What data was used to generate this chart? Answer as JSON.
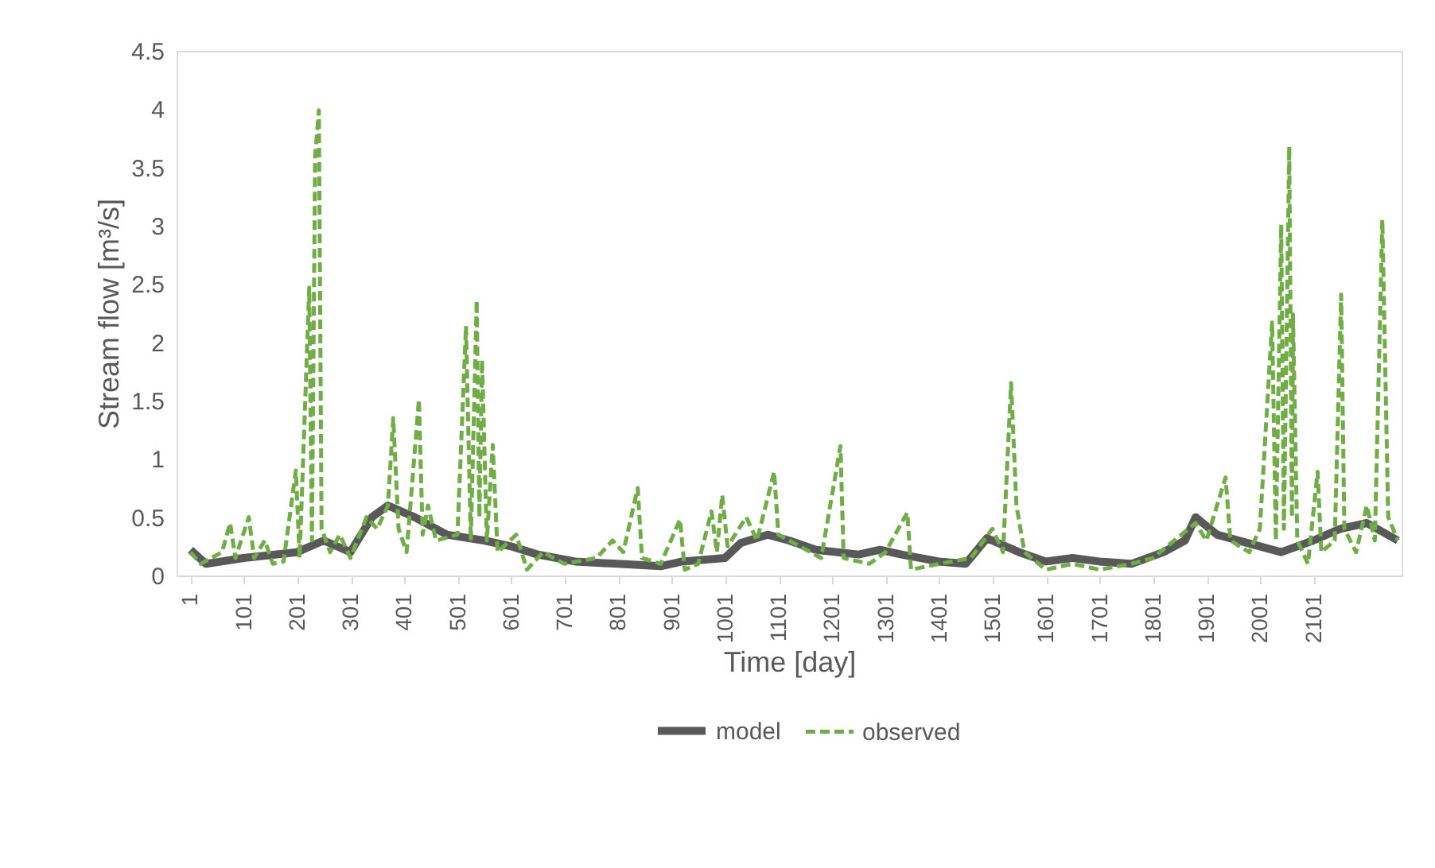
{
  "chart_data": {
    "type": "line",
    "xlabel": "Time [day]",
    "ylabel": "Stream flow [m³/s]",
    "xlim": [
      -25,
      2265
    ],
    "xticks": [
      1,
      101,
      201,
      301,
      401,
      501,
      601,
      701,
      801,
      901,
      1001,
      1101,
      1201,
      1301,
      1401,
      1501,
      1601,
      1701,
      1801,
      1901,
      2001,
      2101
    ],
    "ylim": [
      0,
      4.5
    ],
    "yticks": [
      0,
      0.5,
      1,
      1.5,
      2,
      2.5,
      3,
      3.5,
      4,
      4.5
    ],
    "grid": false,
    "legend": "bottom",
    "series": [
      {
        "name": "model",
        "color": "#595959",
        "line_style": "solid",
        "x": [
          1,
          30,
          100,
          200,
          250,
          300,
          340,
          370,
          420,
          480,
          550,
          600,
          650,
          720,
          800,
          880,
          920,
          1000,
          1030,
          1080,
          1120,
          1170,
          1250,
          1290,
          1330,
          1400,
          1450,
          1490,
          1550,
          1600,
          1650,
          1700,
          1760,
          1820,
          1860,
          1880,
          1920,
          2000,
          2040,
          2100,
          2150,
          2200,
          2258
        ],
        "values": [
          0.22,
          0.1,
          0.15,
          0.2,
          0.3,
          0.2,
          0.5,
          0.6,
          0.5,
          0.35,
          0.3,
          0.25,
          0.18,
          0.12,
          0.1,
          0.08,
          0.12,
          0.15,
          0.28,
          0.35,
          0.3,
          0.22,
          0.18,
          0.22,
          0.18,
          0.12,
          0.1,
          0.32,
          0.2,
          0.12,
          0.15,
          0.12,
          0.1,
          0.2,
          0.3,
          0.5,
          0.35,
          0.25,
          0.2,
          0.3,
          0.4,
          0.45,
          0.3
        ]
      },
      {
        "name": "observed",
        "color": "#70ad47",
        "line_style": "dashed",
        "x": [
          1,
          20,
          40,
          60,
          75,
          85,
          110,
          120,
          140,
          155,
          175,
          198,
          205,
          223,
          228,
          234,
          241,
          246,
          262,
          280,
          300,
          330,
          350,
          370,
          380,
          390,
          405,
          428,
          435,
          445,
          460,
          500,
          516,
          525,
          536,
          541,
          546,
          555,
          566,
          575,
          610,
          630,
          660,
          700,
          760,
          790,
          810,
          837,
          845,
          880,
          916,
          925,
          950,
          975,
          985,
          995,
          1005,
          1040,
          1060,
          1092,
          1100,
          1140,
          1180,
          1216,
          1222,
          1270,
          1300,
          1341,
          1348,
          1400,
          1460,
          1500,
          1520,
          1535,
          1545,
          1560,
          1600,
          1650,
          1700,
          1760,
          1800,
          1840,
          1880,
          1900,
          1936,
          1945,
          1980,
          2000,
          2023,
          2030,
          2040,
          2045,
          2055,
          2060,
          2062,
          2070,
          2090,
          2108,
          2115,
          2140,
          2152,
          2158,
          2180,
          2200,
          2215,
          2229,
          2240,
          2258
        ],
        "values": [
          0.2,
          0.1,
          0.15,
          0.2,
          0.45,
          0.15,
          0.5,
          0.15,
          0.3,
          0.1,
          0.12,
          0.9,
          0.15,
          2.47,
          0.3,
          3.6,
          3.99,
          0.4,
          0.2,
          0.35,
          0.15,
          0.5,
          0.4,
          0.6,
          1.35,
          0.4,
          0.2,
          1.51,
          0.35,
          0.6,
          0.3,
          0.35,
          2.14,
          0.3,
          2.36,
          0.5,
          1.85,
          0.3,
          1.12,
          0.2,
          0.35,
          0.05,
          0.2,
          0.1,
          0.15,
          0.3,
          0.2,
          0.75,
          0.15,
          0.1,
          0.48,
          0.05,
          0.1,
          0.55,
          0.2,
          0.69,
          0.25,
          0.5,
          0.3,
          0.89,
          0.35,
          0.25,
          0.15,
          1.11,
          0.15,
          0.1,
          0.2,
          0.54,
          0.05,
          0.1,
          0.15,
          0.4,
          0.2,
          1.65,
          0.6,
          0.2,
          0.05,
          0.1,
          0.05,
          0.1,
          0.15,
          0.3,
          0.45,
          0.3,
          0.84,
          0.3,
          0.2,
          0.4,
          2.17,
          0.3,
          3.01,
          0.4,
          3.68,
          0.5,
          2.24,
          0.3,
          0.1,
          0.89,
          0.2,
          0.3,
          2.41,
          0.4,
          0.2,
          0.6,
          0.3,
          3.05,
          0.5,
          0.3
        ]
      }
    ]
  }
}
